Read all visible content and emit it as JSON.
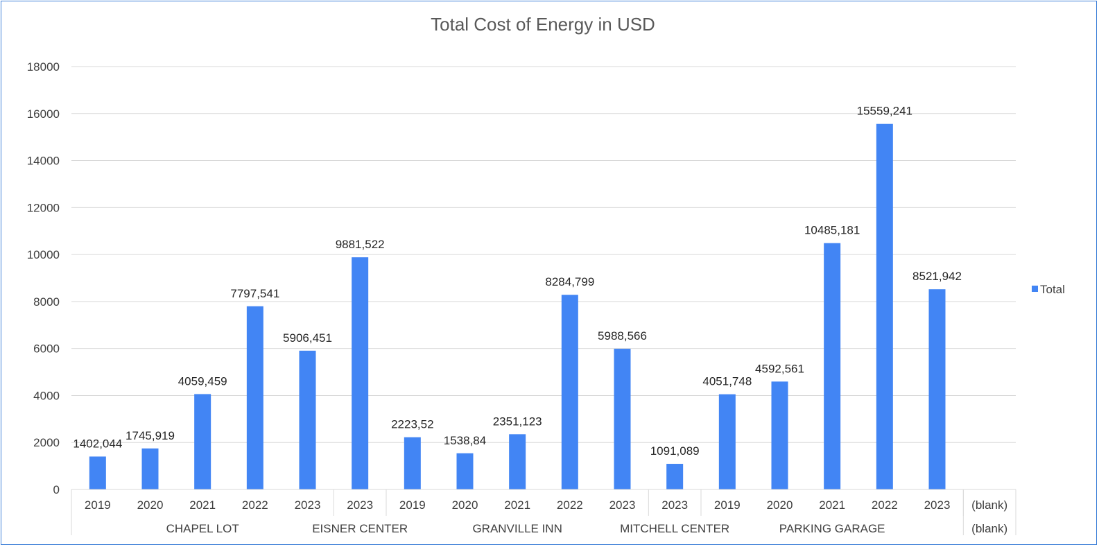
{
  "chart_data": {
    "type": "bar",
    "title": "Total Cost of Energy in USD",
    "ylim": [
      0,
      18000
    ],
    "yticks": [
      "0",
      "2000",
      "4000",
      "6000",
      "8000",
      "10000",
      "12000",
      "14000",
      "16000",
      "18000"
    ],
    "legend": {
      "position": "right",
      "entries": [
        "Total"
      ]
    },
    "grid": true,
    "color": "#4285f4",
    "categories": [
      {
        "group": "CHAPEL LOT",
        "year": "2019",
        "value": 1402.044,
        "label": "1402,044"
      },
      {
        "group": "CHAPEL LOT",
        "year": "2020",
        "value": 1745.919,
        "label": "1745,919"
      },
      {
        "group": "CHAPEL LOT",
        "year": "2021",
        "value": 4059.459,
        "label": "4059,459"
      },
      {
        "group": "CHAPEL LOT",
        "year": "2022",
        "value": 7797.541,
        "label": "7797,541"
      },
      {
        "group": "CHAPEL LOT",
        "year": "2023",
        "value": 5906.451,
        "label": "5906,451"
      },
      {
        "group": "EISNER CENTER",
        "year": "2023",
        "value": 9881.522,
        "label": "9881,522"
      },
      {
        "group": "GRANVILLE INN",
        "year": "2019",
        "value": 2223.52,
        "label": "2223,52"
      },
      {
        "group": "GRANVILLE INN",
        "year": "2020",
        "value": 1538.84,
        "label": "1538,84"
      },
      {
        "group": "GRANVILLE INN",
        "year": "2021",
        "value": 2351.123,
        "label": "2351,123"
      },
      {
        "group": "GRANVILLE INN",
        "year": "2022",
        "value": 8284.799,
        "label": "8284,799"
      },
      {
        "group": "GRANVILLE INN",
        "year": "2023",
        "value": 5988.566,
        "label": "5988,566"
      },
      {
        "group": "MITCHELL CENTER",
        "year": "2023",
        "value": 1091.089,
        "label": "1091,089"
      },
      {
        "group": "PARKING GARAGE",
        "year": "2019",
        "value": 4051.748,
        "label": "4051,748"
      },
      {
        "group": "PARKING GARAGE",
        "year": "2020",
        "value": 4592.561,
        "label": "4592,561"
      },
      {
        "group": "PARKING GARAGE",
        "year": "2021",
        "value": 10485.181,
        "label": "10485,181"
      },
      {
        "group": "PARKING GARAGE",
        "year": "2022",
        "value": 15559.241,
        "label": "15559,241"
      },
      {
        "group": "PARKING GARAGE",
        "year": "2023",
        "value": 8521.942,
        "label": "8521,942"
      },
      {
        "group": "(blank)",
        "year": "(blank)",
        "value": null,
        "label": ""
      }
    ]
  }
}
